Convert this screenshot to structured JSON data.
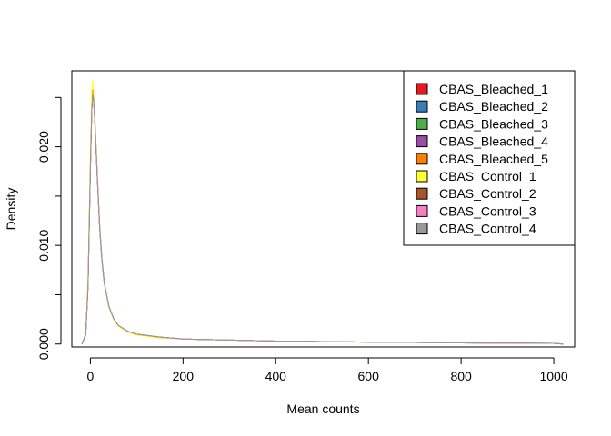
{
  "chart_data": {
    "type": "line",
    "title": "",
    "xlabel": "Mean counts",
    "ylabel": "Density",
    "xlim": [
      -40,
      1045
    ],
    "ylim": [
      -0.0003,
      0.0277
    ],
    "x_ticks": [
      0,
      200,
      400,
      600,
      800,
      1000
    ],
    "x_tick_labels": [
      "0",
      "200",
      "400",
      "600",
      "800",
      "1000"
    ],
    "y_ticks": [
      0.0,
      0.005,
      0.01,
      0.015,
      0.02,
      0.025
    ],
    "y_tick_labels": [
      "0.000",
      "",
      "0.010",
      "",
      "0.020",
      ""
    ],
    "grid": false,
    "legend_position": "top-right",
    "x": [
      -18,
      -10,
      -5,
      0,
      3,
      5,
      7,
      10,
      15,
      20,
      25,
      30,
      40,
      50,
      60,
      80,
      100,
      150,
      200,
      300,
      400,
      500,
      600,
      700,
      800,
      900,
      1000,
      1020
    ],
    "series": [
      {
        "name": "CBAS_Bleached_1",
        "color": "#E41A1C",
        "values": [
          0.0,
          0.001,
          0.006,
          0.018,
          0.024,
          0.0255,
          0.025,
          0.0225,
          0.017,
          0.012,
          0.0085,
          0.0062,
          0.0038,
          0.0026,
          0.0019,
          0.0013,
          0.001,
          0.0007,
          0.0005,
          0.0004,
          0.0003,
          0.00025,
          0.0002,
          0.00016,
          0.00012,
          9e-05,
          7e-05,
          0.0
        ]
      },
      {
        "name": "CBAS_Bleached_2",
        "color": "#377EB8",
        "values": [
          0.0,
          0.001,
          0.006,
          0.0178,
          0.0238,
          0.0253,
          0.0248,
          0.0223,
          0.0169,
          0.0119,
          0.0085,
          0.0062,
          0.0038,
          0.0026,
          0.0019,
          0.0013,
          0.001,
          0.0007,
          0.0005,
          0.0004,
          0.0003,
          0.00025,
          0.0002,
          0.00016,
          0.00012,
          9e-05,
          7e-05,
          0.0
        ]
      },
      {
        "name": "CBAS_Bleached_3",
        "color": "#4DAF4A",
        "values": [
          0.0,
          0.001,
          0.0061,
          0.0181,
          0.0242,
          0.0256,
          0.0251,
          0.0226,
          0.0171,
          0.0121,
          0.0086,
          0.0062,
          0.0038,
          0.0026,
          0.0019,
          0.0013,
          0.001,
          0.0007,
          0.0005,
          0.0004,
          0.0003,
          0.00025,
          0.0002,
          0.00016,
          0.00012,
          9e-05,
          7e-05,
          0.0
        ]
      },
      {
        "name": "CBAS_Bleached_4",
        "color": "#984EA3",
        "values": [
          0.0,
          0.0009,
          0.0058,
          0.0176,
          0.0236,
          0.0251,
          0.0247,
          0.0222,
          0.0168,
          0.0118,
          0.0084,
          0.0061,
          0.0038,
          0.0026,
          0.0019,
          0.0013,
          0.001,
          0.0007,
          0.0005,
          0.0004,
          0.0003,
          0.00025,
          0.0002,
          0.00016,
          0.00012,
          9e-05,
          7e-05,
          0.0
        ]
      },
      {
        "name": "CBAS_Bleached_5",
        "color": "#FF7F00",
        "values": [
          0.0,
          0.0011,
          0.0063,
          0.0184,
          0.0245,
          0.0258,
          0.0252,
          0.0226,
          0.0171,
          0.012,
          0.0085,
          0.0062,
          0.0038,
          0.0026,
          0.0019,
          0.0013,
          0.001,
          0.0007,
          0.0005,
          0.0004,
          0.0003,
          0.00025,
          0.0002,
          0.00016,
          0.00012,
          9e-05,
          7e-05,
          0.0
        ]
      },
      {
        "name": "CBAS_Control_1",
        "color": "#FFFF33",
        "values": [
          0.0,
          0.0012,
          0.0068,
          0.0195,
          0.0258,
          0.0268,
          0.0259,
          0.023,
          0.0172,
          0.012,
          0.0085,
          0.0061,
          0.0037,
          0.0025,
          0.0018,
          0.0012,
          0.0009,
          0.0006,
          0.0005,
          0.0004,
          0.0003,
          0.00024,
          0.00019,
          0.00015,
          0.00012,
          9e-05,
          7e-05,
          0.0
        ]
      },
      {
        "name": "CBAS_Control_2",
        "color": "#A65628",
        "values": [
          0.0,
          0.001,
          0.0059,
          0.0177,
          0.0237,
          0.0252,
          0.0247,
          0.0223,
          0.0169,
          0.0119,
          0.0085,
          0.0062,
          0.0038,
          0.0026,
          0.0019,
          0.0013,
          0.001,
          0.0007,
          0.0005,
          0.0004,
          0.0003,
          0.00025,
          0.0002,
          0.00016,
          0.00012,
          9e-05,
          7e-05,
          0.0
        ]
      },
      {
        "name": "CBAS_Control_3",
        "color": "#F781BF",
        "values": [
          0.0,
          0.001,
          0.006,
          0.0179,
          0.0239,
          0.0254,
          0.0249,
          0.0224,
          0.017,
          0.012,
          0.0085,
          0.0062,
          0.0038,
          0.0026,
          0.0019,
          0.0013,
          0.001,
          0.0007,
          0.0005,
          0.0004,
          0.0003,
          0.00025,
          0.0002,
          0.00016,
          0.00012,
          9e-05,
          7e-05,
          0.0
        ]
      },
      {
        "name": "CBAS_Control_4",
        "color": "#999999",
        "values": [
          0.0,
          0.001,
          0.0059,
          0.0178,
          0.0238,
          0.0253,
          0.0248,
          0.0223,
          0.0169,
          0.0119,
          0.0085,
          0.0062,
          0.0038,
          0.0026,
          0.0019,
          0.0013,
          0.001,
          0.0007,
          0.0005,
          0.0004,
          0.0003,
          0.00025,
          0.0002,
          0.00016,
          0.00012,
          9e-05,
          7e-05,
          0.0
        ]
      }
    ]
  }
}
